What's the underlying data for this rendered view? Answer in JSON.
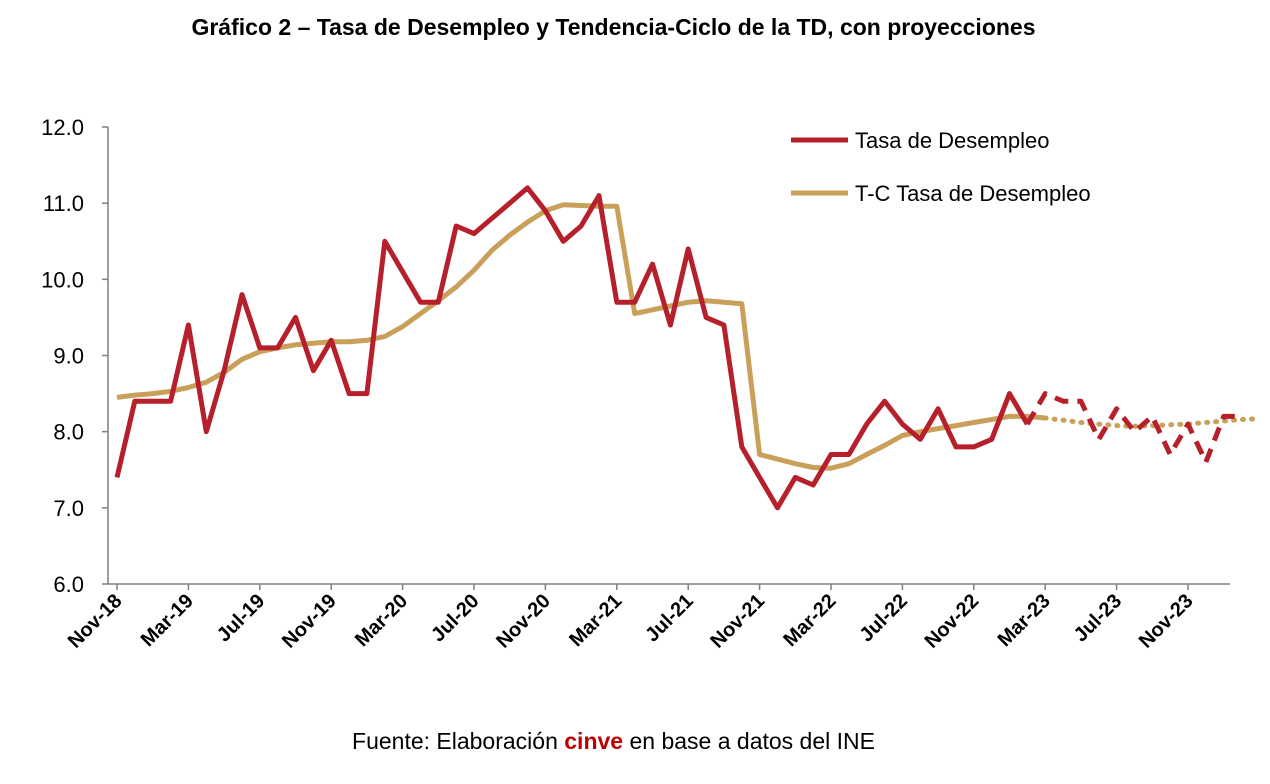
{
  "title": "Gráfico 2 – Tasa de Desempleo y Tendencia-Ciclo de la TD, con proyecciones",
  "source": {
    "prefix": "Fuente: Elaboración ",
    "brand": "cinve",
    "suffix": " en base a datos del INE"
  },
  "colors": {
    "td": "#b5202a",
    "tc": "#c9a05a",
    "axis": "#7f7f7f",
    "brand": "#c00000"
  },
  "chart_data": {
    "type": "line",
    "title": "Gráfico 2 – Tasa de Desempleo y Tendencia-Ciclo de la TD, con proyecciones",
    "xlabel": "",
    "ylabel": "",
    "ylim": [
      6.0,
      12.0
    ],
    "yticks": [
      "6.0",
      "7.0",
      "8.0",
      "9.0",
      "10.0",
      "11.0",
      "12.0"
    ],
    "xtick_labels": [
      "Nov-18",
      "Mar-19",
      "Jul-19",
      "Nov-19",
      "Mar-20",
      "Jul-20",
      "Nov-20",
      "Mar-21",
      "Jul-21",
      "Nov-21",
      "Mar-22",
      "Jul-22",
      "Nov-22",
      "Mar-23",
      "Jul-23",
      "Nov-23"
    ],
    "x": [
      "Nov-18",
      "Dec-18",
      "Jan-19",
      "Feb-19",
      "Mar-19",
      "Apr-19",
      "May-19",
      "Jun-19",
      "Jul-19",
      "Aug-19",
      "Sep-19",
      "Oct-19",
      "Nov-19",
      "Dec-19",
      "Jan-20",
      "Feb-20",
      "Mar-20",
      "Apr-20",
      "May-20",
      "Jun-20",
      "Jul-20",
      "Aug-20",
      "Sep-20",
      "Oct-20",
      "Nov-20",
      "Dec-20",
      "Jan-21",
      "Feb-21",
      "Mar-21",
      "Apr-21",
      "May-21",
      "Jun-21",
      "Jul-21",
      "Aug-21",
      "Sep-21",
      "Oct-21",
      "Nov-21",
      "Dec-21",
      "Jan-22",
      "Feb-22",
      "Mar-22",
      "Apr-22",
      "May-22",
      "Jun-22",
      "Jul-22",
      "Aug-22",
      "Sep-22",
      "Oct-22",
      "Nov-22",
      "Dec-22",
      "Jan-23",
      "Feb-23",
      "Mar-23",
      "Apr-23",
      "May-23",
      "Jun-23",
      "Jul-23",
      "Aug-23",
      "Sep-23",
      "Oct-23",
      "Nov-23",
      "Dec-23",
      "Jan-24",
      "Feb-24",
      "Mar-24"
    ],
    "legend_position": "top-right",
    "grid": false,
    "series": [
      {
        "name": "Tasa de Desempleo",
        "color": "#b5202a",
        "style": "solid",
        "values": [
          7.4,
          8.4,
          8.4,
          8.4,
          9.4,
          8.0,
          8.8,
          9.8,
          9.1,
          9.1,
          9.5,
          8.8,
          9.2,
          8.5,
          8.5,
          10.5,
          10.1,
          9.7,
          9.7,
          10.7,
          10.6,
          10.8,
          11.0,
          11.2,
          10.9,
          10.5,
          10.7,
          11.1,
          9.7,
          9.7,
          10.2,
          9.4,
          10.4,
          9.5,
          9.4,
          7.8,
          7.4,
          7.0,
          7.4,
          7.3,
          7.7,
          7.7,
          8.1,
          8.4,
          8.1,
          7.9,
          8.3,
          7.8,
          7.8,
          7.9,
          8.5,
          8.1,
          null,
          null,
          null,
          null,
          null,
          null,
          null,
          null,
          null,
          null,
          null,
          null,
          null
        ]
      },
      {
        "name": "",
        "color": "#b5202a",
        "style": "dashed",
        "values": [
          null,
          null,
          null,
          null,
          null,
          null,
          null,
          null,
          null,
          null,
          null,
          null,
          null,
          null,
          null,
          null,
          null,
          null,
          null,
          null,
          null,
          null,
          null,
          null,
          null,
          null,
          null,
          null,
          null,
          null,
          null,
          null,
          null,
          null,
          null,
          null,
          null,
          null,
          null,
          null,
          null,
          null,
          null,
          null,
          null,
          null,
          null,
          null,
          null,
          null,
          null,
          8.1,
          8.5,
          8.4,
          8.4,
          7.9,
          8.3,
          8.0,
          8.2,
          7.7,
          8.1,
          7.6,
          8.2,
          8.2,
          null
        ]
      },
      {
        "name": "T-C Tasa de Desempleo",
        "color": "#c9a05a",
        "style": "solid",
        "values": [
          8.45,
          8.48,
          8.5,
          8.53,
          8.58,
          8.65,
          8.78,
          8.95,
          9.05,
          9.1,
          9.14,
          9.16,
          9.18,
          9.18,
          9.2,
          9.25,
          9.38,
          9.55,
          9.72,
          9.9,
          10.12,
          10.38,
          10.58,
          10.75,
          10.9,
          10.98,
          10.97,
          10.96,
          10.96,
          9.55,
          9.6,
          9.65,
          9.7,
          9.72,
          9.7,
          9.68,
          7.7,
          7.64,
          7.58,
          7.53,
          7.52,
          7.58,
          7.7,
          7.82,
          7.95,
          8.0,
          8.04,
          8.08,
          8.12,
          8.16,
          8.2,
          8.2,
          8.18,
          null,
          null,
          null,
          null,
          null,
          null,
          null,
          null,
          null,
          null,
          null,
          null
        ]
      },
      {
        "name": "",
        "color": "#c9a05a",
        "style": "dotted",
        "values": [
          null,
          null,
          null,
          null,
          null,
          null,
          null,
          null,
          null,
          null,
          null,
          null,
          null,
          null,
          null,
          null,
          null,
          null,
          null,
          null,
          null,
          null,
          null,
          null,
          null,
          null,
          null,
          null,
          null,
          null,
          null,
          null,
          null,
          null,
          null,
          null,
          null,
          null,
          null,
          null,
          null,
          null,
          null,
          null,
          null,
          null,
          null,
          null,
          null,
          null,
          null,
          null,
          8.18,
          8.15,
          8.12,
          8.1,
          8.08,
          8.07,
          8.08,
          8.09,
          8.1,
          8.12,
          8.14,
          8.16,
          8.17
        ]
      }
    ]
  }
}
